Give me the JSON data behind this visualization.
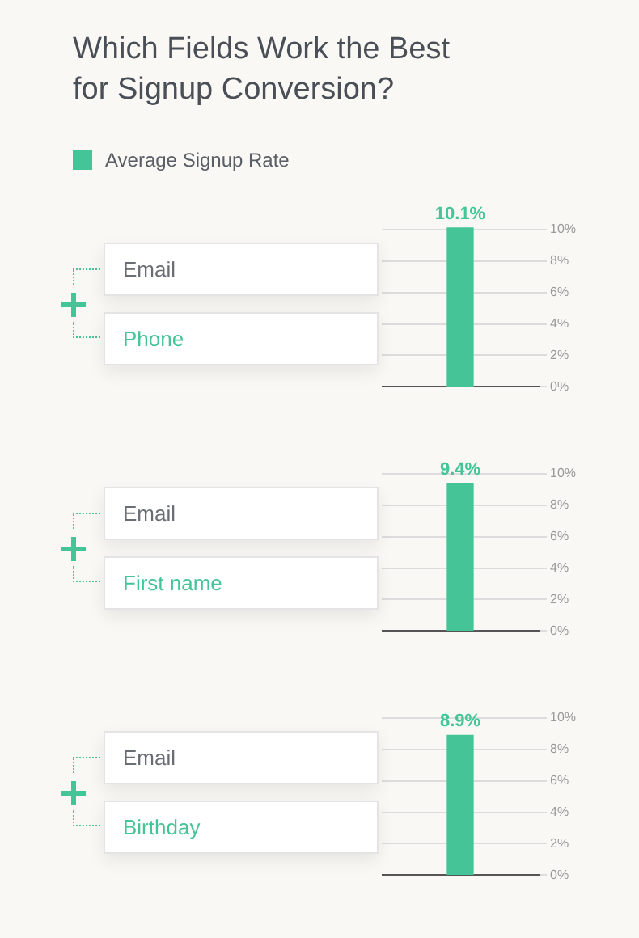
{
  "chart_data": [
    {
      "type": "bar",
      "title": "Which Fields Work the Best for Signup Conversion?",
      "legend": "top left",
      "categories": [
        null
      ],
      "series": [
        {
          "name": "Average Signup Rate",
          "color": "#45c497",
          "values": [
            10.1
          ]
        }
      ],
      "value_labels": [
        "10.1%"
      ],
      "ylim": [
        0,
        10.2
      ],
      "yticks": [
        {
          "value": 0,
          "label": "0%"
        },
        {
          "value": 2,
          "label": "2%"
        },
        {
          "value": 4,
          "label": "4%"
        },
        {
          "value": 6,
          "label": "6%"
        },
        {
          "value": 8,
          "label": "8%"
        },
        {
          "value": 10,
          "label": "10%"
        }
      ],
      "grid": "y",
      "tick_labels": "y",
      "annotations": [
        "Email",
        "Phone"
      ]
    },
    {
      "type": "bar",
      "categories": [
        null
      ],
      "series": [
        {
          "color": "#45c497",
          "values": [
            9.4
          ]
        }
      ],
      "value_labels": [
        "9.4%"
      ],
      "ylim": [
        0,
        10.2
      ],
      "yticks": [
        {
          "value": 0,
          "label": "0%"
        },
        {
          "value": 2,
          "label": "2%"
        },
        {
          "value": 4,
          "label": "4%"
        },
        {
          "value": 6,
          "label": "6%"
        },
        {
          "value": 8,
          "label": "8%"
        },
        {
          "value": 10,
          "label": "10%"
        }
      ],
      "grid": "y",
      "tick_labels": "y",
      "annotations": [
        "Email",
        "First name"
      ]
    },
    {
      "type": "bar",
      "categories": [
        null
      ],
      "series": [
        {
          "color": "#45c497",
          "values": [
            8.9
          ]
        }
      ],
      "value_labels": [
        "8.9%"
      ],
      "ylim": [
        0,
        10.2
      ],
      "yticks": [
        {
          "value": 0,
          "label": "0%"
        },
        {
          "value": 2,
          "label": "2%"
        },
        {
          "value": 4,
          "label": "4%"
        },
        {
          "value": 6,
          "label": "6%"
        },
        {
          "value": 8,
          "label": "8%"
        },
        {
          "value": 10,
          "label": "10%"
        }
      ],
      "grid": "y",
      "tick_labels": "y",
      "annotations": [
        "Email",
        "Birthday"
      ]
    }
  ]
}
